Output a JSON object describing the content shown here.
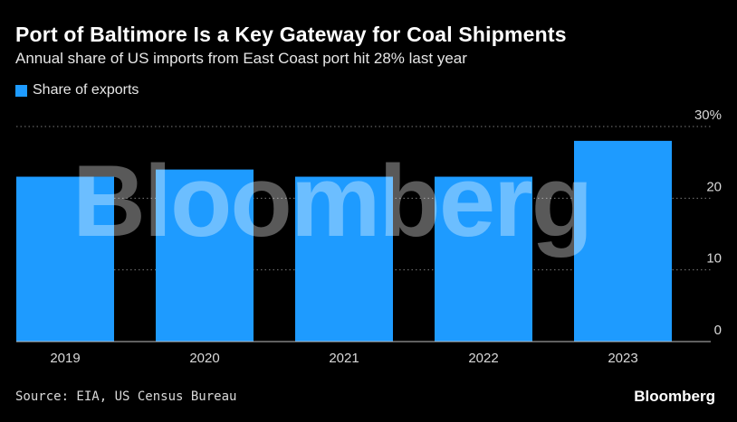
{
  "header": {
    "title": "Port of Baltimore Is a Key Gateway for Coal Shipments",
    "subtitle": "Annual share of US imports from East Coast port hit 28% last year"
  },
  "legend": {
    "label": "Share of exports",
    "color": "#1e9bff"
  },
  "footer": {
    "source": "Source: EIA, US Census Bureau",
    "brand": "Bloomberg"
  },
  "watermark": "Bloomberg",
  "chart_data": {
    "type": "bar",
    "categories": [
      "2019",
      "2020",
      "2021",
      "2022",
      "2023"
    ],
    "series": [
      {
        "name": "Share of exports",
        "values": [
          23,
          24,
          23,
          23,
          28
        ],
        "color": "#1e9bff"
      }
    ],
    "ylim": [
      0,
      30
    ],
    "yticks": [
      0,
      10,
      20,
      30
    ],
    "ytick_labels": [
      "0",
      "10",
      "20",
      "30%"
    ],
    "y_axis_position": "right",
    "grid": true,
    "legend_position": "top-left"
  }
}
